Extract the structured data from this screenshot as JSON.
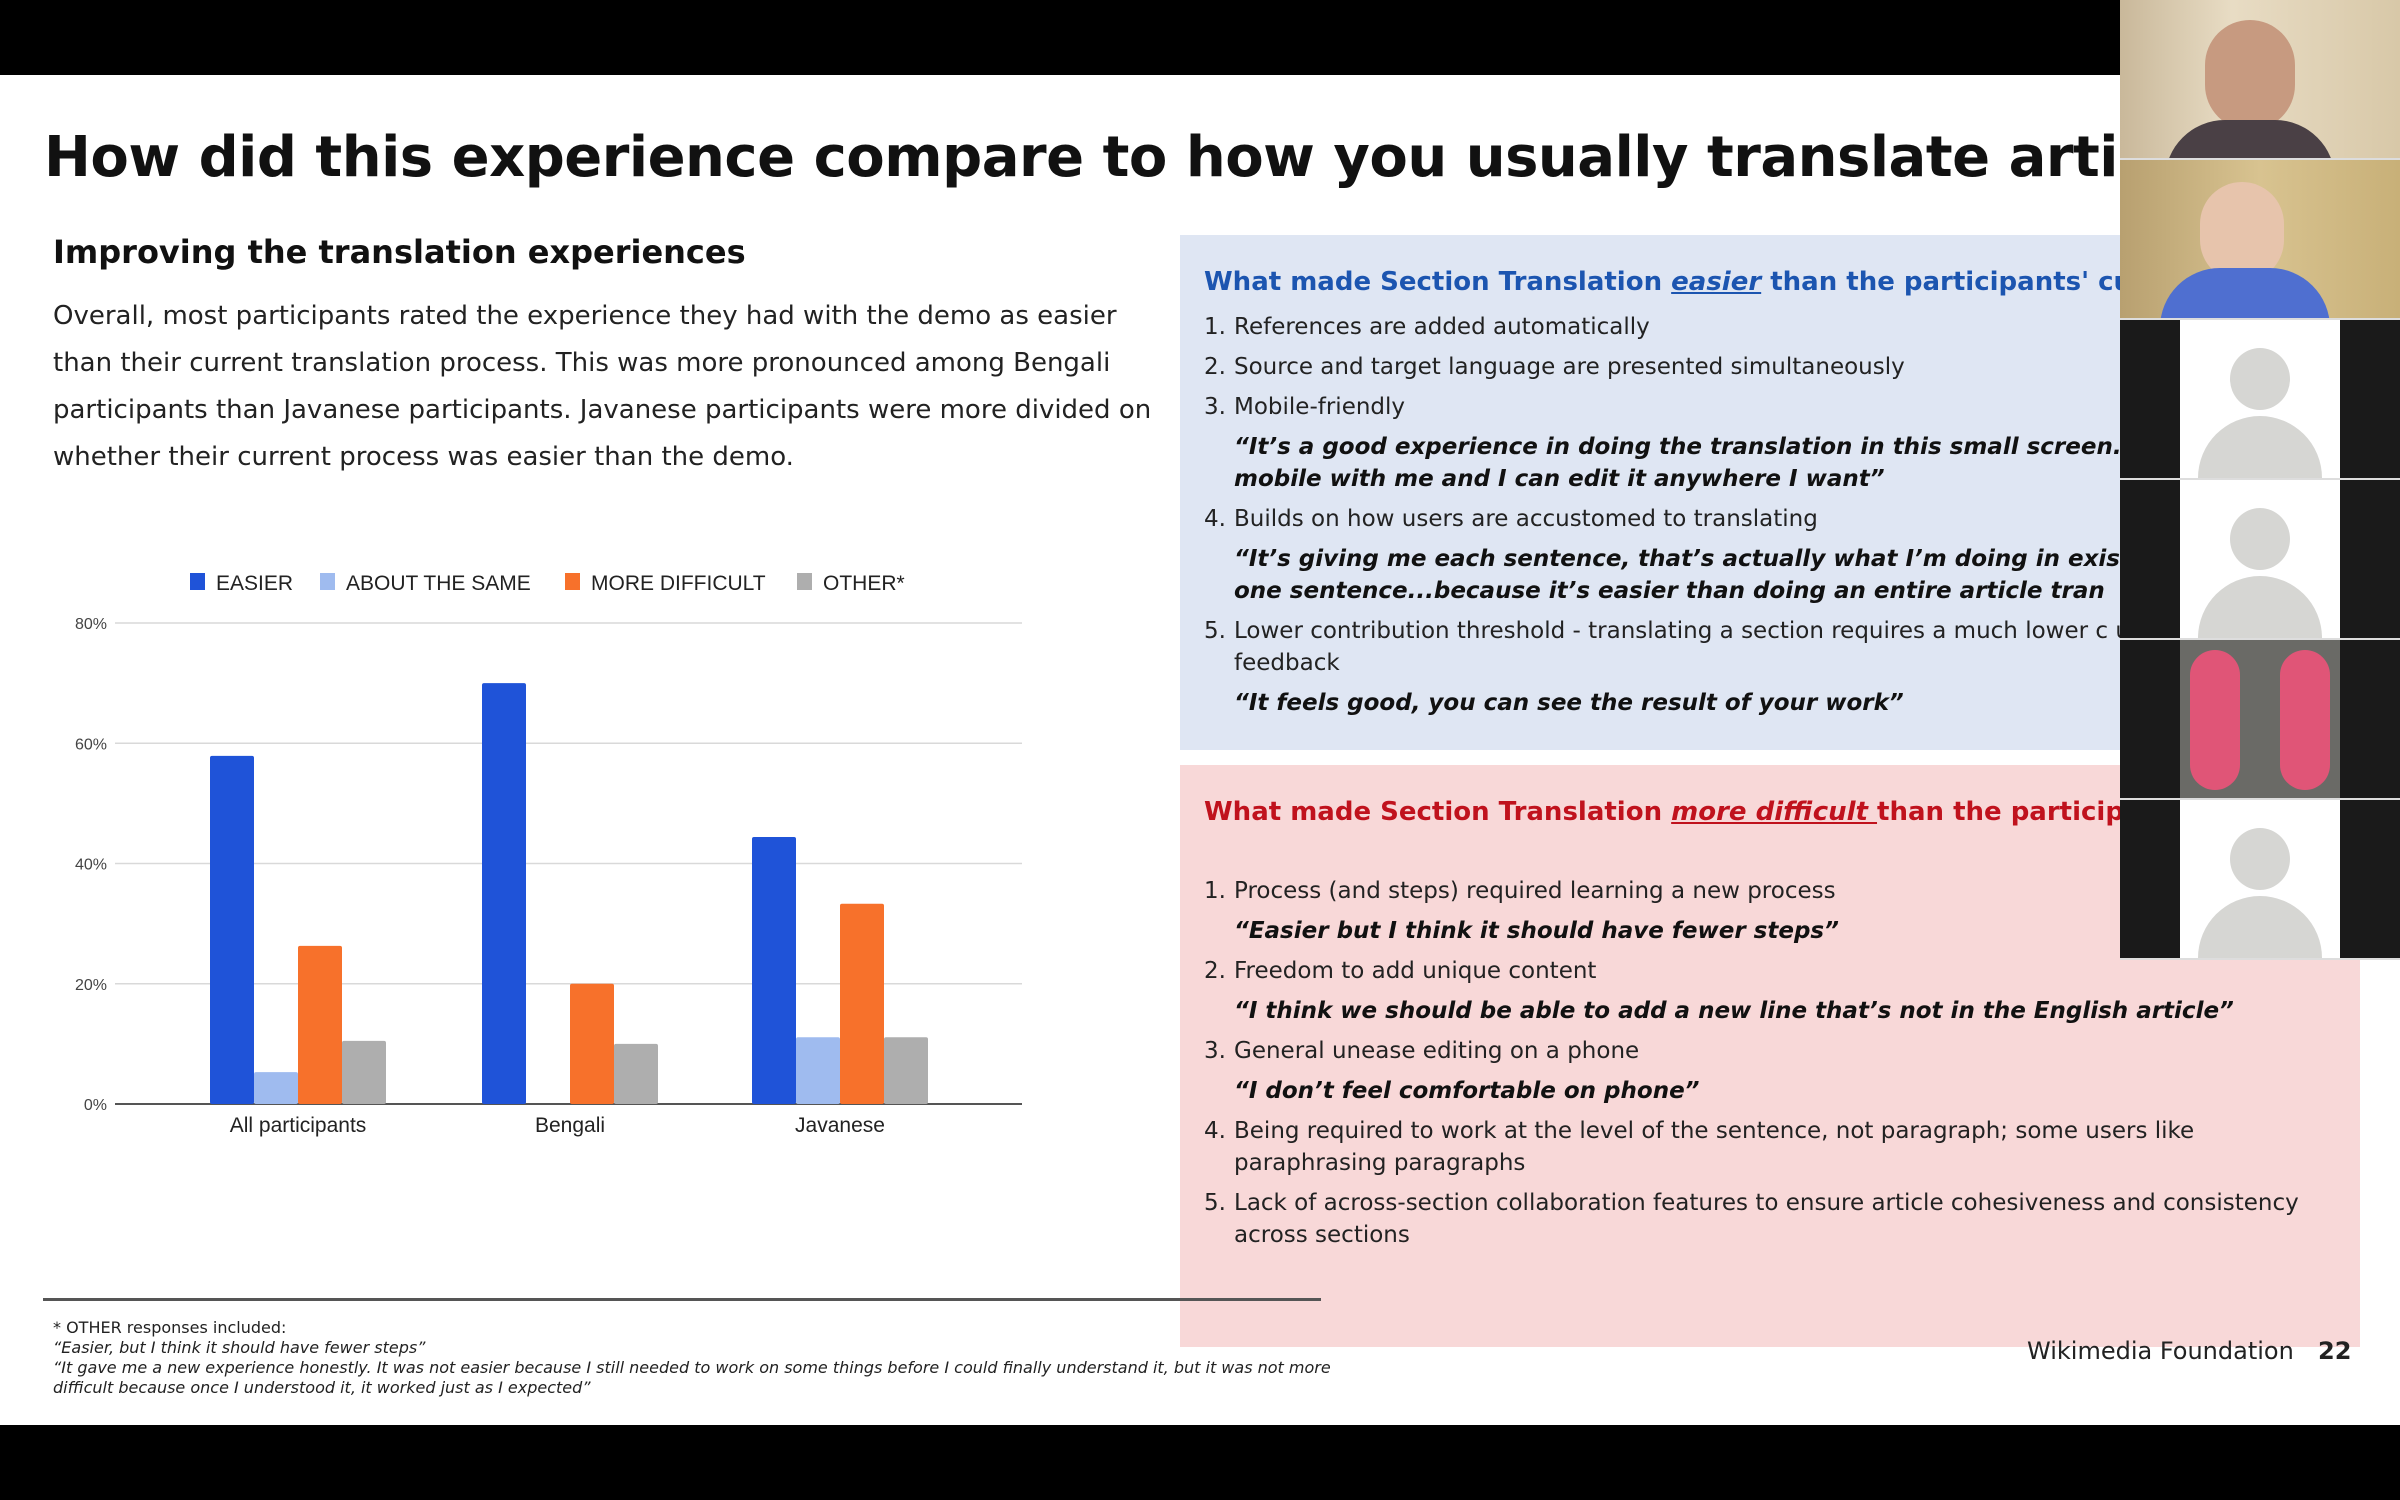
{
  "slide": {
    "title": "How did this experience compare to how you usually translate articles",
    "subheading": "Improving the translation experiences",
    "intro": "Overall, most participants rated the experience they had with the demo as easier than their current translation process. This was more pronounced among Bengali participants than Javanese participants. Javanese participants were more divided on whether their current process was easier than the demo.",
    "easier_box": {
      "heading_pre": "What made Section Translation ",
      "heading_em": "easier",
      "heading_post": " than the participants' curre",
      "items": [
        {
          "num": "1.",
          "text": "References are added automatically"
        },
        {
          "num": "2.",
          "text": "Source and target language are presented simultaneously"
        },
        {
          "num": "3.",
          "text": "Mobile-friendly",
          "quote": "“It’s a good experience in doing the translation in this small screen...beca my mobile with me and I can edit it anywhere I want”"
        },
        {
          "num": "4.",
          "text": "Builds on how users are accustomed to translating",
          "quote": "“It’s giving me each sentence, that’s actually what I’m doing in existing to one-by-one sentence...because it’s easier than doing an entire article tran"
        },
        {
          "num": "5.",
          "text": "Lower contribution threshold - translating a section requires a much lower c users get positive feedback",
          "quote": "“It feels good, you can see the result of your work”"
        }
      ]
    },
    "difficult_box": {
      "heading_pre": "What made Section Translation ",
      "heading_em": "more difficult ",
      "heading_post": "than the participan processes?",
      "items": [
        {
          "num": "1.",
          "text": "Process (and steps) required learning a new process",
          "quote": "“Easier but I think it should have fewer steps”"
        },
        {
          "num": "2.",
          "text": "Freedom to add unique content",
          "quote": "“I think we should be able to add a new line that’s not in the English article”"
        },
        {
          "num": "3.",
          "text": "General unease editing on a phone",
          "quote": "“I don’t feel comfortable on phone”"
        },
        {
          "num": "4.",
          "text": "Being required to work at the level of the sentence, not paragraph; some users like paraphrasing paragraphs"
        },
        {
          "num": "5.",
          "text": "Lack of across-section collaboration features to ensure article cohesiveness and consistency across sections"
        }
      ]
    },
    "footnote": {
      "label": "* OTHER responses included:",
      "quote1": "“Easier, but I think it should have fewer steps”",
      "quote2": "“It gave me a new experience honestly. It was not easier because I still needed to work on some things before I could finally understand it, but it was not more difficult because once I understood it, it worked just as I expected”"
    },
    "brand": "Wikimedia Foundation",
    "page_number": "22"
  },
  "chart_data": {
    "type": "bar",
    "title": "",
    "xlabel": "",
    "ylabel": "",
    "categories": [
      "All participants",
      "Bengali",
      "Javanese"
    ],
    "series": [
      {
        "name": "EASIER",
        "color": "#1f53d8",
        "values": [
          57.9,
          70,
          44.4
        ]
      },
      {
        "name": "ABOUT THE SAME",
        "color": "#9fbbef",
        "values": [
          5.3,
          0,
          11.1
        ]
      },
      {
        "name": "MORE DIFFICULT",
        "color": "#f7712b",
        "values": [
          26.3,
          20,
          33.3
        ]
      },
      {
        "name": "OTHER*",
        "color": "#aeaeae",
        "values": [
          10.5,
          10,
          11.1
        ]
      }
    ],
    "ylim": [
      0,
      80
    ],
    "yticks": [
      "0%",
      "20%",
      "40%",
      "60%",
      "80%"
    ],
    "grid": true,
    "legend_position": "top"
  },
  "video_call": {
    "participants": [
      "camera-1",
      "camera-2",
      "avatar-1",
      "avatar-2",
      "camera-3",
      "avatar-3"
    ]
  }
}
